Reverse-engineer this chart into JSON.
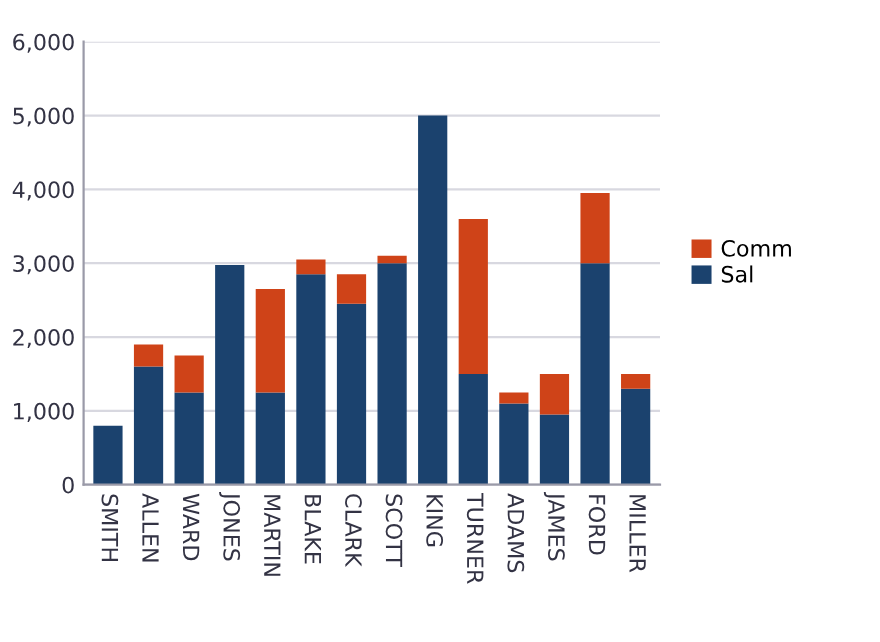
{
  "chart_data": {
    "type": "bar",
    "stacked": true,
    "categories": [
      "SMITH",
      "ALLEN",
      "WARD",
      "JONES",
      "MARTIN",
      "BLAKE",
      "CLARK",
      "SCOTT",
      "KING",
      "TURNER",
      "ADAMS",
      "JAMES",
      "FORD",
      "MILLER"
    ],
    "series": [
      {
        "name": "Sal",
        "color": "#1b426e",
        "values": [
          800,
          1600,
          1250,
          2975,
          1250,
          2850,
          2450,
          3000,
          5000,
          1500,
          1100,
          950,
          3000,
          1300
        ]
      },
      {
        "name": "Comm",
        "color": "#cf4318",
        "values": [
          0,
          300,
          500,
          0,
          1400,
          200,
          400,
          100,
          0,
          2100,
          150,
          550,
          950,
          200
        ]
      }
    ],
    "ylim": [
      0,
      6000
    ],
    "yticks": [
      {
        "value": 0,
        "label": "0"
      },
      {
        "value": 1000,
        "label": "1,000"
      },
      {
        "value": 2000,
        "label": "2,000"
      },
      {
        "value": 3000,
        "label": "3,000"
      },
      {
        "value": 4000,
        "label": "4,000"
      },
      {
        "value": 5000,
        "label": "5,000"
      },
      {
        "value": 6000,
        "label": "6,000"
      }
    ],
    "grid": "y",
    "legend": "right"
  }
}
